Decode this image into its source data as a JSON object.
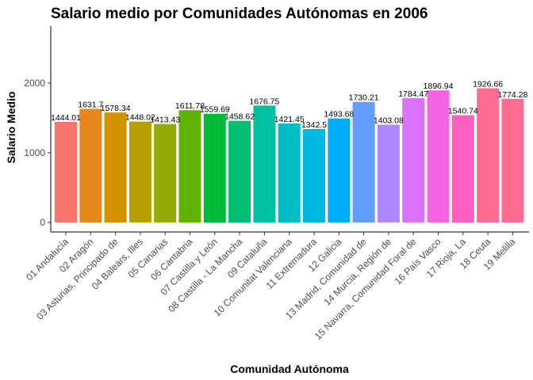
{
  "chart_data": {
    "type": "bar",
    "title": "Salario medio por Comunidades Autónomas en 2006",
    "xlabel": "Comunidad Autónoma",
    "ylabel": "Salario Medio",
    "ylim": [
      0,
      2800
    ],
    "yticks": [
      0,
      1000,
      2000
    ],
    "grid": false,
    "legend": "none",
    "categories": [
      "01 Andalucía",
      "02 Aragón",
      "03 Asturias, Principado de",
      "04 Balears, Illes",
      "05 Canarias",
      "06 Cantabria",
      "07 Castilla y León",
      "08 Castilla - La Mancha",
      "09 Cataluña",
      "10 Comunitat Valenciana",
      "11 Extremadura",
      "12 Galicia",
      "13 Madrid, Comunidad de",
      "14 Murcia, Región de",
      "15 Navarra, Comunidad Foral de",
      "16 País Vasco",
      "17 Rioja, La",
      "18 Ceuta",
      "19 Melilla"
    ],
    "values": [
      1444.01,
      1631.7,
      1578.34,
      1448.02,
      1413.43,
      1611.78,
      1559.69,
      1458.62,
      1676.75,
      1421.45,
      1342.5,
      1493.68,
      1730.21,
      1403.08,
      1784.47,
      1896.94,
      1540.74,
      1926.66,
      1774.28
    ],
    "value_labels": [
      "1444.01",
      "1631.7",
      "1578.34",
      "1448.02",
      "1413.43",
      "1611.78",
      "1559.69",
      "1458.62",
      "1676.75",
      "1421.45",
      "1342.5",
      "1493.68",
      "1730.21",
      "1403.08",
      "1784.47",
      "1896.94",
      "1540.74",
      "1926.66",
      "1774.28"
    ],
    "colors": [
      "#F8766D",
      "#E7861B",
      "#D39200",
      "#B79F00",
      "#93AA00",
      "#5EB300",
      "#00BA38",
      "#00BF74",
      "#00C19F",
      "#00BFC4",
      "#00B9E3",
      "#00ADFA",
      "#619CFF",
      "#AE87FF",
      "#DB72FB",
      "#F564E3",
      "#FF61C3",
      "#FF6C91",
      "#FF6C91"
    ]
  }
}
